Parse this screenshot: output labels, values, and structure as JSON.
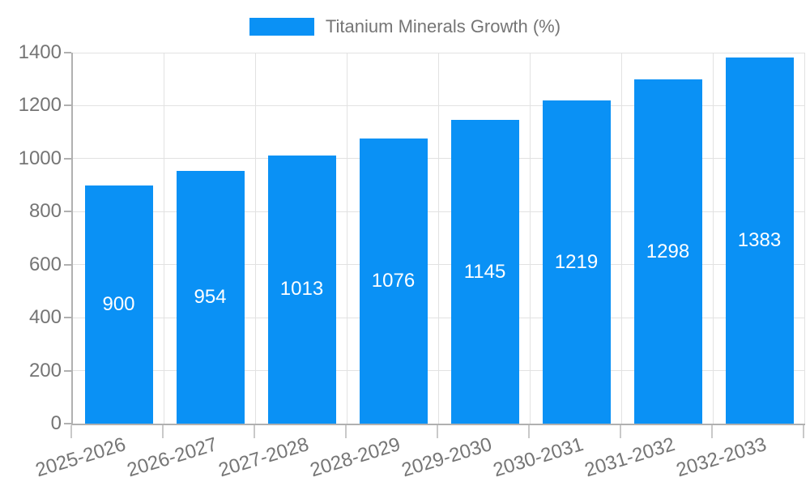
{
  "legend": {
    "label": "Titanium Minerals Growth (%)"
  },
  "chart_data": {
    "type": "bar",
    "title": "Titanium Minerals Growth (%)",
    "categories": [
      "2025-2026",
      "2026-2027",
      "2027-2028",
      "2028-2029",
      "2029-2030",
      "2030-2031",
      "2031-2032",
      "2032-2033"
    ],
    "series": [
      {
        "name": "Titanium Minerals Growth (%)",
        "values": [
          900,
          954,
          1013,
          1076,
          1145,
          1219,
          1298,
          1383
        ]
      }
    ],
    "value_labels": [
      "900",
      "954",
      "1013",
      "1076",
      "1145",
      "1219",
      "1298",
      "1383"
    ],
    "xlabel": "",
    "ylabel": "",
    "ylim": [
      0,
      1400
    ],
    "yticks": [
      0,
      200,
      400,
      600,
      800,
      1000,
      1200,
      1400
    ],
    "grid": true,
    "legend_position": "top-center",
    "xtick_angle_deg": -17,
    "colors": {
      "bar": "#0a91f5",
      "value_label": "#ffffff",
      "axis_line": "#b0b0b0",
      "gridline": "#e2e2e2",
      "tick_label": "#757575",
      "legend_text": "#757575",
      "background": "#ffffff"
    }
  }
}
